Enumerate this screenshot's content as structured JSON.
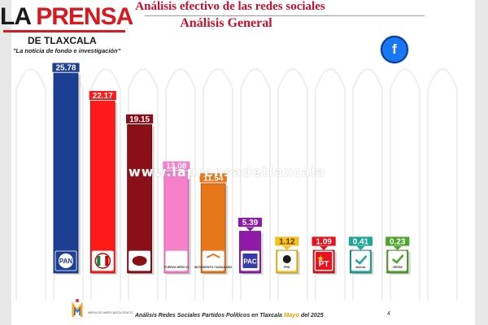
{
  "logo": {
    "main_black": "LA ",
    "main_red": "PRENSA",
    "sub": "DE TLAXCALA",
    "tagline": "\"La noticia de fondo e investigación\""
  },
  "title": {
    "line1": "Análisis efectivo de las redes sociales",
    "line2": "Análisis General"
  },
  "badge": {
    "icon": "facebook-icon",
    "glyph": "f"
  },
  "watermark": "www.laprensadetlaxcala",
  "footer": {
    "logo_text": "IMPULSO MERCADOLÓGICO",
    "prefix": "Análisis Redes Sociales  Partidos Políticos en Tlaxcala ",
    "month": "Mayo",
    "suffix": "  del 2025",
    "page": "4"
  },
  "chart_data": {
    "type": "bar",
    "title": "Análisis General",
    "xlabel": "",
    "ylabel": "",
    "ylim": [
      0,
      26
    ],
    "grid": false,
    "legend": "none",
    "categories": [
      "PAN",
      "PRI",
      "MORENA",
      "FUERZA POR MÉXICO",
      "MOVIMIENTO CIUDADANO",
      "PAC",
      "PRD",
      "PT",
      "ALIANZA CIUDADANA",
      "VERDE TLAXCALA"
    ],
    "values": [
      25.78,
      22.17,
      19.15,
      13.08,
      11.54,
      5.39,
      1.12,
      1.09,
      0.41,
      0.23
    ],
    "value_labels": [
      "25.78",
      "22.17",
      "19.15",
      "13.08",
      "11.54",
      "5.39",
      "1.12",
      "1.09",
      "0.41",
      "0.23"
    ],
    "logo_labels": [
      "PAN",
      "",
      "",
      "FUERZA MÉXICO",
      "MOVIMIENTO CIUDADANO",
      "PAC",
      "PRD",
      "PT",
      "alianza",
      "VERDE"
    ],
    "colors": [
      "#1c3f94",
      "#ff1a1a",
      "#8b0f16",
      "#f57fc8",
      "#e8761a",
      "#8f1aa8",
      "#f4c21a",
      "#e8101a",
      "#1fa596",
      "#4fa52b"
    ]
  }
}
